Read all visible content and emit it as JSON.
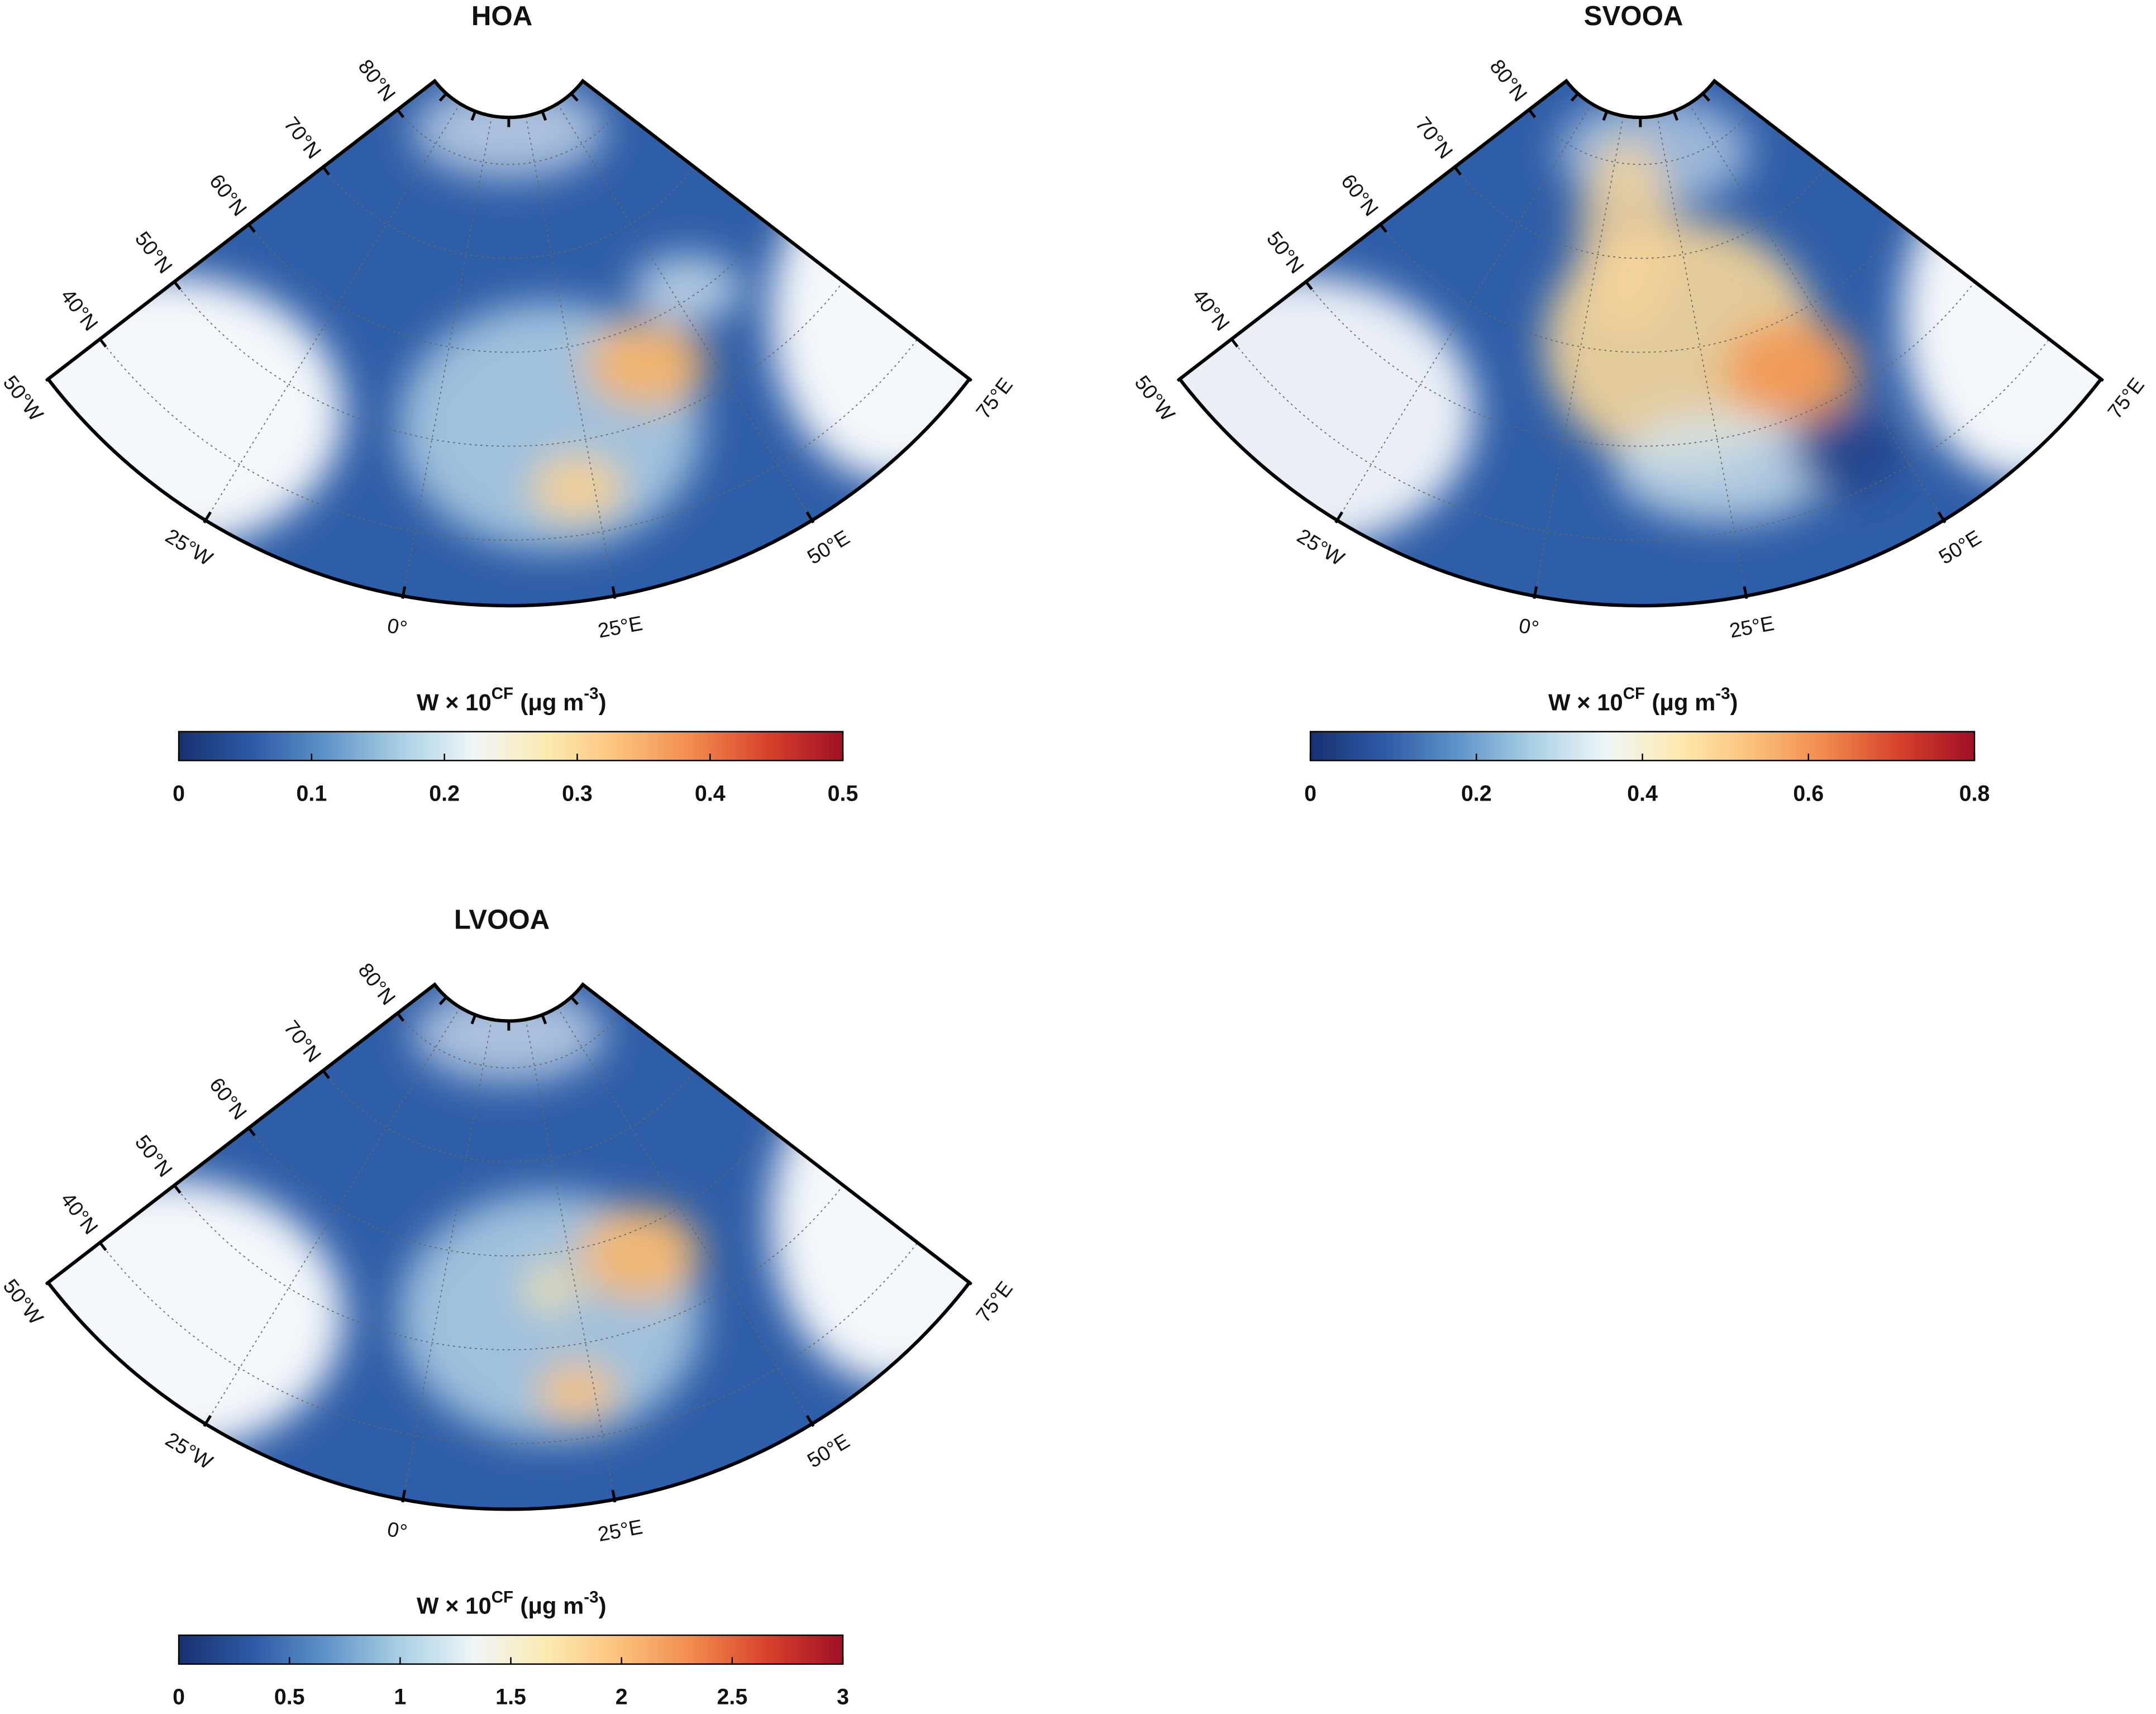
{
  "colormap": [
    "#17306f",
    "#2d5aa6",
    "#5f93c8",
    "#a9cfe4",
    "#eef6f7",
    "#fde9b0",
    "#fbc07a",
    "#f0884c",
    "#d6402b",
    "#a00f26"
  ],
  "panels": [
    {
      "title": "HOA",
      "lat_labels": [
        "80°N",
        "70°N",
        "60°N",
        "50°N",
        "40°N"
      ],
      "lon_labels": [
        "50°W",
        "25°W",
        "0°",
        "25°E",
        "50°E",
        "75°E"
      ],
      "colorbar": {
        "label": [
          "W × 10",
          "CF",
          "(μg m",
          "-3",
          ")"
        ],
        "lim": [
          0,
          0.5
        ],
        "ticks": [
          0,
          0.1,
          0.2,
          0.3,
          0.4,
          0.5
        ]
      }
    },
    {
      "title": "SVOOA",
      "lat_labels": [
        "80°N",
        "70°N",
        "60°N",
        "50°N",
        "40°N"
      ],
      "lon_labels": [
        "50°W",
        "25°W",
        "0°",
        "25°E",
        "50°E",
        "75°E"
      ],
      "colorbar": {
        "label": [
          "W × 10",
          "CF",
          "(μg m",
          "-3",
          ")"
        ],
        "lim": [
          0,
          0.8
        ],
        "ticks": [
          0,
          0.2,
          0.4,
          0.6,
          0.8
        ]
      }
    },
    {
      "title": "LVOOA",
      "lat_labels": [
        "80°N",
        "70°N",
        "60°N",
        "50°N",
        "40°N"
      ],
      "lon_labels": [
        "50°W",
        "25°W",
        "0°",
        "25°E",
        "50°E",
        "75°E"
      ],
      "colorbar": {
        "label": [
          "W × 10",
          "CF",
          "(μg m",
          "-3",
          ")"
        ],
        "lim": [
          0,
          3
        ],
        "ticks": [
          0,
          0.5,
          1,
          1.5,
          2,
          2.5,
          3
        ]
      }
    }
  ]
}
